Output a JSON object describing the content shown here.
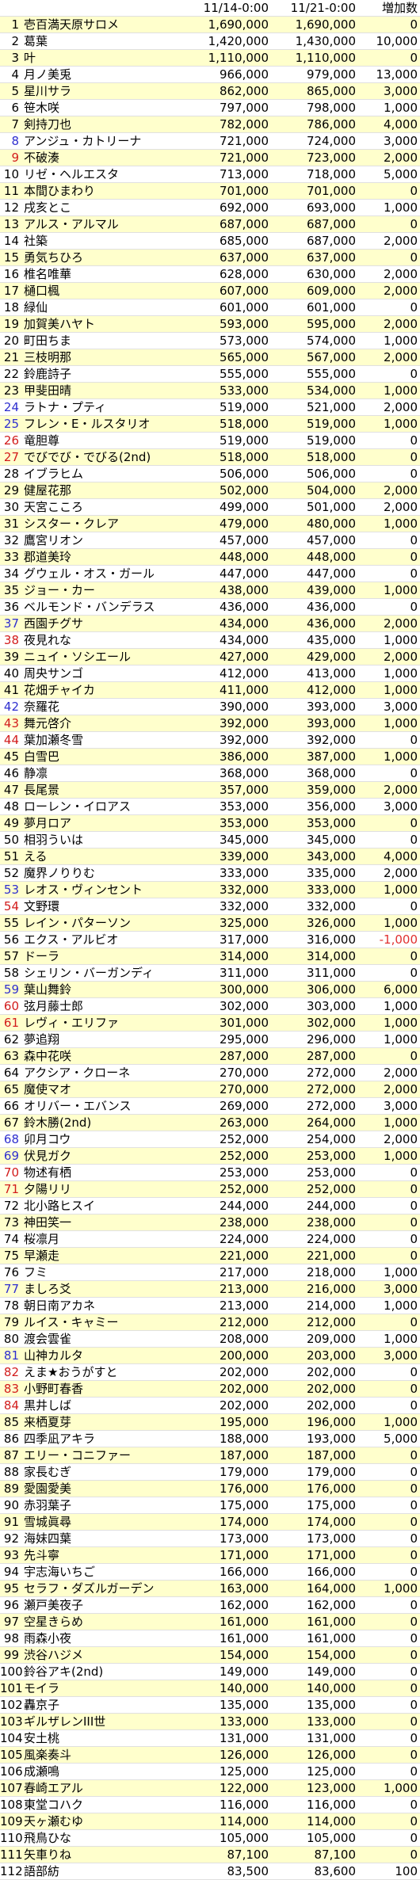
{
  "header": {
    "rank": "",
    "name": "",
    "col1": "11/14-0:00",
    "col2": "11/21-0:00",
    "inc": "増加数"
  },
  "colors": {
    "row_highlight": "#ffffcc",
    "rank_blue": "#2f2fcf",
    "rank_red": "#d21c1c",
    "negative": "#e03030"
  },
  "rows": [
    {
      "rank": "1",
      "name": "壱百満天原サロメ",
      "v1": "1,690,000",
      "v2": "1,690,000",
      "inc": "0"
    },
    {
      "rank": "2",
      "name": "葛葉",
      "v1": "1,420,000",
      "v2": "1,430,000",
      "inc": "10,000"
    },
    {
      "rank": "3",
      "name": "叶",
      "v1": "1,110,000",
      "v2": "1,110,000",
      "inc": "0"
    },
    {
      "rank": "4",
      "name": "月ノ美兎",
      "v1": "966,000",
      "v2": "979,000",
      "inc": "13,000"
    },
    {
      "rank": "5",
      "name": "星川サラ",
      "v1": "862,000",
      "v2": "865,000",
      "inc": "3,000"
    },
    {
      "rank": "6",
      "name": "笹木咲",
      "v1": "797,000",
      "v2": "798,000",
      "inc": "1,000"
    },
    {
      "rank": "7",
      "name": "剣持刀也",
      "v1": "782,000",
      "v2": "786,000",
      "inc": "4,000"
    },
    {
      "rank": "8",
      "name": "アンジュ・カトリーナ",
      "v1": "721,000",
      "v2": "724,000",
      "inc": "3,000",
      "c": "b"
    },
    {
      "rank": "9",
      "name": "不破湊",
      "v1": "721,000",
      "v2": "723,000",
      "inc": "2,000",
      "c": "r"
    },
    {
      "rank": "10",
      "name": "リゼ・ヘルエスタ",
      "v1": "713,000",
      "v2": "718,000",
      "inc": "5,000"
    },
    {
      "rank": "11",
      "name": "本間ひまわり",
      "v1": "701,000",
      "v2": "701,000",
      "inc": "0"
    },
    {
      "rank": "12",
      "name": "戌亥とこ",
      "v1": "692,000",
      "v2": "693,000",
      "inc": "1,000"
    },
    {
      "rank": "13",
      "name": "アルス・アルマル",
      "v1": "687,000",
      "v2": "687,000",
      "inc": "0"
    },
    {
      "rank": "14",
      "name": "社築",
      "v1": "685,000",
      "v2": "687,000",
      "inc": "2,000"
    },
    {
      "rank": "15",
      "name": "勇気ちひろ",
      "v1": "637,000",
      "v2": "637,000",
      "inc": "0"
    },
    {
      "rank": "16",
      "name": "椎名唯華",
      "v1": "628,000",
      "v2": "630,000",
      "inc": "2,000"
    },
    {
      "rank": "17",
      "name": "樋口楓",
      "v1": "607,000",
      "v2": "609,000",
      "inc": "2,000"
    },
    {
      "rank": "18",
      "name": "緑仙",
      "v1": "601,000",
      "v2": "601,000",
      "inc": "0"
    },
    {
      "rank": "19",
      "name": "加賀美ハヤト",
      "v1": "593,000",
      "v2": "595,000",
      "inc": "2,000"
    },
    {
      "rank": "20",
      "name": "町田ちま",
      "v1": "573,000",
      "v2": "574,000",
      "inc": "1,000"
    },
    {
      "rank": "21",
      "name": "三枝明那",
      "v1": "565,000",
      "v2": "567,000",
      "inc": "2,000"
    },
    {
      "rank": "22",
      "name": "鈴鹿詩子",
      "v1": "555,000",
      "v2": "555,000",
      "inc": "0"
    },
    {
      "rank": "23",
      "name": "甲斐田晴",
      "v1": "533,000",
      "v2": "534,000",
      "inc": "1,000"
    },
    {
      "rank": "24",
      "name": "ラトナ・プティ",
      "v1": "519,000",
      "v2": "521,000",
      "inc": "2,000",
      "c": "b"
    },
    {
      "rank": "25",
      "name": "フレン・E・ルスタリオ",
      "v1": "518,000",
      "v2": "519,000",
      "inc": "1,000",
      "c": "b"
    },
    {
      "rank": "26",
      "name": "竜胆尊",
      "v1": "519,000",
      "v2": "519,000",
      "inc": "0",
      "c": "r"
    },
    {
      "rank": "27",
      "name": "でびでび・でびる(2nd)",
      "v1": "518,000",
      "v2": "518,000",
      "inc": "0",
      "c": "r"
    },
    {
      "rank": "28",
      "name": "イブラヒム",
      "v1": "506,000",
      "v2": "506,000",
      "inc": "0"
    },
    {
      "rank": "29",
      "name": "健屋花那",
      "v1": "502,000",
      "v2": "504,000",
      "inc": "2,000"
    },
    {
      "rank": "30",
      "name": "天宮こころ",
      "v1": "499,000",
      "v2": "501,000",
      "inc": "2,000"
    },
    {
      "rank": "31",
      "name": "シスター・クレア",
      "v1": "479,000",
      "v2": "480,000",
      "inc": "1,000"
    },
    {
      "rank": "32",
      "name": "鷹宮リオン",
      "v1": "457,000",
      "v2": "457,000",
      "inc": "0"
    },
    {
      "rank": "33",
      "name": "郡道美玲",
      "v1": "448,000",
      "v2": "448,000",
      "inc": "0"
    },
    {
      "rank": "34",
      "name": "グウェル・オス・ガール",
      "v1": "447,000",
      "v2": "447,000",
      "inc": "0"
    },
    {
      "rank": "35",
      "name": "ジョー・カー",
      "v1": "438,000",
      "v2": "439,000",
      "inc": "1,000"
    },
    {
      "rank": "36",
      "name": "ベルモンド・バンデラス",
      "v1": "436,000",
      "v2": "436,000",
      "inc": "0"
    },
    {
      "rank": "37",
      "name": "西園チグサ",
      "v1": "434,000",
      "v2": "436,000",
      "inc": "2,000",
      "c": "b"
    },
    {
      "rank": "38",
      "name": "夜見れな",
      "v1": "434,000",
      "v2": "435,000",
      "inc": "1,000",
      "c": "r"
    },
    {
      "rank": "39",
      "name": "ニュイ・ソシエール",
      "v1": "427,000",
      "v2": "429,000",
      "inc": "2,000"
    },
    {
      "rank": "40",
      "name": "周央サンゴ",
      "v1": "412,000",
      "v2": "413,000",
      "inc": "1,000"
    },
    {
      "rank": "41",
      "name": "花畑チャイカ",
      "v1": "411,000",
      "v2": "412,000",
      "inc": "1,000"
    },
    {
      "rank": "42",
      "name": "奈羅花",
      "v1": "390,000",
      "v2": "393,000",
      "inc": "3,000",
      "c": "b"
    },
    {
      "rank": "43",
      "name": "舞元啓介",
      "v1": "392,000",
      "v2": "393,000",
      "inc": "1,000",
      "c": "r"
    },
    {
      "rank": "44",
      "name": "葉加瀬冬雪",
      "v1": "392,000",
      "v2": "392,000",
      "inc": "0",
      "c": "r"
    },
    {
      "rank": "45",
      "name": "白雪巴",
      "v1": "386,000",
      "v2": "387,000",
      "inc": "1,000"
    },
    {
      "rank": "46",
      "name": "静凛",
      "v1": "368,000",
      "v2": "368,000",
      "inc": "0"
    },
    {
      "rank": "47",
      "name": "長尾景",
      "v1": "357,000",
      "v2": "359,000",
      "inc": "2,000"
    },
    {
      "rank": "48",
      "name": "ローレン・イロアス",
      "v1": "353,000",
      "v2": "356,000",
      "inc": "3,000"
    },
    {
      "rank": "49",
      "name": "夢月ロア",
      "v1": "353,000",
      "v2": "353,000",
      "inc": "0"
    },
    {
      "rank": "50",
      "name": "相羽ういは",
      "v1": "345,000",
      "v2": "345,000",
      "inc": "0"
    },
    {
      "rank": "51",
      "name": "える",
      "v1": "339,000",
      "v2": "343,000",
      "inc": "4,000"
    },
    {
      "rank": "52",
      "name": "魔界ノりりむ",
      "v1": "333,000",
      "v2": "335,000",
      "inc": "2,000"
    },
    {
      "rank": "53",
      "name": "レオス・ヴィンセント",
      "v1": "332,000",
      "v2": "333,000",
      "inc": "1,000",
      "c": "b"
    },
    {
      "rank": "54",
      "name": "文野環",
      "v1": "332,000",
      "v2": "332,000",
      "inc": "0",
      "c": "r"
    },
    {
      "rank": "55",
      "name": "レイン・パターソン",
      "v1": "325,000",
      "v2": "326,000",
      "inc": "1,000"
    },
    {
      "rank": "56",
      "name": "エクス・アルビオ",
      "v1": "317,000",
      "v2": "316,000",
      "inc": "-1,000",
      "neg": true
    },
    {
      "rank": "57",
      "name": "ドーラ",
      "v1": "314,000",
      "v2": "314,000",
      "inc": "0"
    },
    {
      "rank": "58",
      "name": "シェリン・バーガンディ",
      "v1": "311,000",
      "v2": "311,000",
      "inc": "0"
    },
    {
      "rank": "59",
      "name": "葉山舞鈴",
      "v1": "300,000",
      "v2": "306,000",
      "inc": "6,000",
      "c": "b"
    },
    {
      "rank": "60",
      "name": "弦月藤士郎",
      "v1": "302,000",
      "v2": "303,000",
      "inc": "1,000",
      "c": "r"
    },
    {
      "rank": "61",
      "name": "レヴィ・エリファ",
      "v1": "301,000",
      "v2": "302,000",
      "inc": "1,000",
      "c": "r"
    },
    {
      "rank": "62",
      "name": "夢追翔",
      "v1": "295,000",
      "v2": "296,000",
      "inc": "1,000"
    },
    {
      "rank": "63",
      "name": "森中花咲",
      "v1": "287,000",
      "v2": "287,000",
      "inc": "0"
    },
    {
      "rank": "64",
      "name": "アクシア・クローネ",
      "v1": "270,000",
      "v2": "272,000",
      "inc": "2,000"
    },
    {
      "rank": "65",
      "name": "魔使マオ",
      "v1": "270,000",
      "v2": "272,000",
      "inc": "2,000"
    },
    {
      "rank": "66",
      "name": "オリバー・エバンス",
      "v1": "269,000",
      "v2": "272,000",
      "inc": "3,000"
    },
    {
      "rank": "67",
      "name": "鈴木勝(2nd)",
      "v1": "263,000",
      "v2": "264,000",
      "inc": "1,000"
    },
    {
      "rank": "68",
      "name": "卯月コウ",
      "v1": "252,000",
      "v2": "254,000",
      "inc": "2,000",
      "c": "b"
    },
    {
      "rank": "69",
      "name": "伏見ガク",
      "v1": "252,000",
      "v2": "253,000",
      "inc": "1,000",
      "c": "b"
    },
    {
      "rank": "70",
      "name": "物述有栖",
      "v1": "253,000",
      "v2": "253,000",
      "inc": "0",
      "c": "r"
    },
    {
      "rank": "71",
      "name": "夕陽リリ",
      "v1": "252,000",
      "v2": "252,000",
      "inc": "0",
      "c": "r"
    },
    {
      "rank": "72",
      "name": "北小路ヒスイ",
      "v1": "244,000",
      "v2": "244,000",
      "inc": "0"
    },
    {
      "rank": "73",
      "name": "神田笑一",
      "v1": "238,000",
      "v2": "238,000",
      "inc": "0"
    },
    {
      "rank": "74",
      "name": "桜凛月",
      "v1": "224,000",
      "v2": "224,000",
      "inc": "0"
    },
    {
      "rank": "75",
      "name": "早瀬走",
      "v1": "221,000",
      "v2": "221,000",
      "inc": "0"
    },
    {
      "rank": "76",
      "name": "フミ",
      "v1": "217,000",
      "v2": "218,000",
      "inc": "1,000"
    },
    {
      "rank": "77",
      "name": "ましろ爻",
      "v1": "213,000",
      "v2": "216,000",
      "inc": "3,000",
      "c": "b"
    },
    {
      "rank": "78",
      "name": "朝日南アカネ",
      "v1": "213,000",
      "v2": "214,000",
      "inc": "1,000"
    },
    {
      "rank": "79",
      "name": "ルイス・キャミー",
      "v1": "212,000",
      "v2": "212,000",
      "inc": "0"
    },
    {
      "rank": "80",
      "name": "渡会雲雀",
      "v1": "208,000",
      "v2": "209,000",
      "inc": "1,000"
    },
    {
      "rank": "81",
      "name": "山神カルタ",
      "v1": "200,000",
      "v2": "203,000",
      "inc": "3,000",
      "c": "b"
    },
    {
      "rank": "82",
      "name": "えま★おうがすと",
      "v1": "202,000",
      "v2": "202,000",
      "inc": "0",
      "c": "r"
    },
    {
      "rank": "83",
      "name": "小野町春香",
      "v1": "202,000",
      "v2": "202,000",
      "inc": "0",
      "c": "r"
    },
    {
      "rank": "84",
      "name": "黒井しば",
      "v1": "202,000",
      "v2": "202,000",
      "inc": "0",
      "c": "r"
    },
    {
      "rank": "85",
      "name": "来栖夏芽",
      "v1": "195,000",
      "v2": "196,000",
      "inc": "1,000"
    },
    {
      "rank": "86",
      "name": "四季凪アキラ",
      "v1": "188,000",
      "v2": "193,000",
      "inc": "5,000"
    },
    {
      "rank": "87",
      "name": "エリー・コニファー",
      "v1": "187,000",
      "v2": "187,000",
      "inc": "0"
    },
    {
      "rank": "88",
      "name": "家長むぎ",
      "v1": "179,000",
      "v2": "179,000",
      "inc": "0"
    },
    {
      "rank": "89",
      "name": "愛園愛美",
      "v1": "176,000",
      "v2": "176,000",
      "inc": "0"
    },
    {
      "rank": "90",
      "name": "赤羽葉子",
      "v1": "175,000",
      "v2": "175,000",
      "inc": "0"
    },
    {
      "rank": "91",
      "name": "雪城眞尋",
      "v1": "174,000",
      "v2": "174,000",
      "inc": "0"
    },
    {
      "rank": "92",
      "name": "海妹四葉",
      "v1": "173,000",
      "v2": "173,000",
      "inc": "0"
    },
    {
      "rank": "93",
      "name": "先斗寧",
      "v1": "171,000",
      "v2": "171,000",
      "inc": "0"
    },
    {
      "rank": "94",
      "name": "宇志海いちご",
      "v1": "166,000",
      "v2": "166,000",
      "inc": "0"
    },
    {
      "rank": "95",
      "name": "セラフ・ダズルガーデン",
      "v1": "163,000",
      "v2": "164,000",
      "inc": "1,000"
    },
    {
      "rank": "96",
      "name": "瀬戸美夜子",
      "v1": "162,000",
      "v2": "162,000",
      "inc": "0"
    },
    {
      "rank": "97",
      "name": "空星きらめ",
      "v1": "161,000",
      "v2": "161,000",
      "inc": "0"
    },
    {
      "rank": "98",
      "name": "雨森小夜",
      "v1": "161,000",
      "v2": "161,000",
      "inc": "0"
    },
    {
      "rank": "99",
      "name": "渋谷ハジメ",
      "v1": "154,000",
      "v2": "154,000",
      "inc": "0"
    },
    {
      "rank": "100",
      "name": "鈴谷アキ(2nd)",
      "v1": "149,000",
      "v2": "149,000",
      "inc": "0"
    },
    {
      "rank": "101",
      "name": "モイラ",
      "v1": "140,000",
      "v2": "140,000",
      "inc": "0"
    },
    {
      "rank": "102",
      "name": "轟京子",
      "v1": "135,000",
      "v2": "135,000",
      "inc": "0"
    },
    {
      "rank": "103",
      "name": "ギルザレンIII世",
      "v1": "133,000",
      "v2": "133,000",
      "inc": "0"
    },
    {
      "rank": "104",
      "name": "安土桃",
      "v1": "131,000",
      "v2": "131,000",
      "inc": "0"
    },
    {
      "rank": "105",
      "name": "風楽奏斗",
      "v1": "126,000",
      "v2": "126,000",
      "inc": "0"
    },
    {
      "rank": "106",
      "name": "成瀬鳴",
      "v1": "125,000",
      "v2": "125,000",
      "inc": "0"
    },
    {
      "rank": "107",
      "name": "春崎エアル",
      "v1": "122,000",
      "v2": "123,000",
      "inc": "1,000"
    },
    {
      "rank": "108",
      "name": "東堂コハク",
      "v1": "116,000",
      "v2": "116,000",
      "inc": "0"
    },
    {
      "rank": "109",
      "name": "天ヶ瀬むゆ",
      "v1": "114,000",
      "v2": "114,000",
      "inc": "0"
    },
    {
      "rank": "110",
      "name": "飛鳥ひな",
      "v1": "105,000",
      "v2": "105,000",
      "inc": "0"
    },
    {
      "rank": "111",
      "name": "矢車りね",
      "v1": "87,100",
      "v2": "87,100",
      "inc": "0"
    },
    {
      "rank": "112",
      "name": "語部紡",
      "v1": "83,500",
      "v2": "83,600",
      "inc": "100"
    }
  ]
}
